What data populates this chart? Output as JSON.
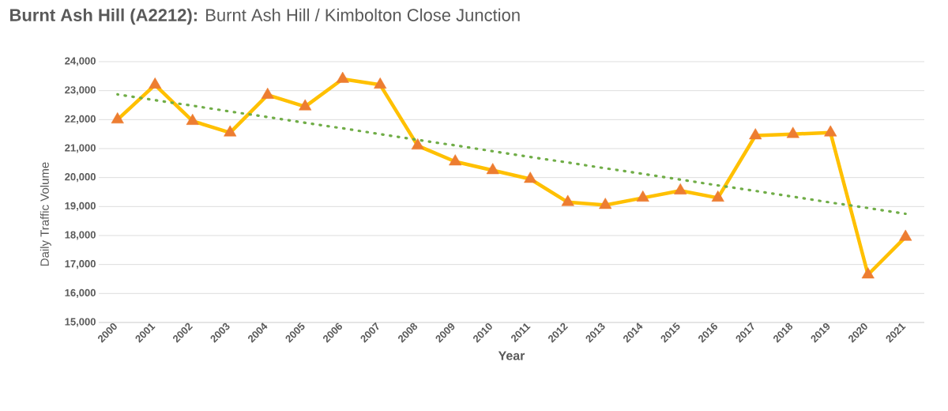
{
  "chart_data": {
    "type": "line",
    "title": "**Burnt Ash Hill (A2212):** Burnt Ash Hill / Kimbolton Close Junction",
    "xlabel": "Year",
    "ylabel": "Daily Traffic Volume",
    "categories": [
      "2000",
      "2001",
      "2002",
      "2003",
      "2004",
      "2005",
      "2006",
      "2007",
      "2008",
      "2009",
      "2010",
      "2011",
      "2012",
      "2013",
      "2014",
      "2015",
      "2016",
      "2017",
      "2018",
      "2019",
      "2020",
      "2021"
    ],
    "series": [
      {
        "color": "#ffc000",
        "marker": "triangle",
        "line_style": "solid",
        "values": [
          22000,
          23200,
          21950,
          21550,
          22850,
          22450,
          23400,
          23200,
          21100,
          20550,
          20250,
          19950,
          19150,
          19050,
          19300,
          19550,
          19300,
          21450,
          21500,
          21550,
          16650,
          17950
        ]
      },
      {
        "type": "line",
        "color": "#70ad47",
        "marker": "none",
        "line_style": "dotted",
        "values": [
          22870,
          22670,
          22480,
          22280,
          22090,
          21890,
          21700,
          21500,
          21300,
          21110,
          20910,
          20710,
          20520,
          20320,
          20130,
          19930,
          19730,
          19540,
          19340,
          19140,
          18950,
          18750
        ]
      }
    ],
    "ylim": [
      15000,
      24000
    ],
    "yticks": [
      {
        "value": 15000,
        "label": "15,000"
      },
      {
        "value": 16000,
        "label": "16,000"
      },
      {
        "value": 17000,
        "label": "17,000"
      },
      {
        "value": 18000,
        "label": "18,000"
      },
      {
        "value": 19000,
        "label": "19,000"
      },
      {
        "value": 20000,
        "label": "20,000"
      },
      {
        "value": 21000,
        "label": "21,000"
      },
      {
        "value": 22000,
        "label": "22,000"
      },
      {
        "value": 23000,
        "label": "23,000"
      },
      {
        "value": 24000,
        "label": "24,000"
      }
    ],
    "grid": "y"
  }
}
